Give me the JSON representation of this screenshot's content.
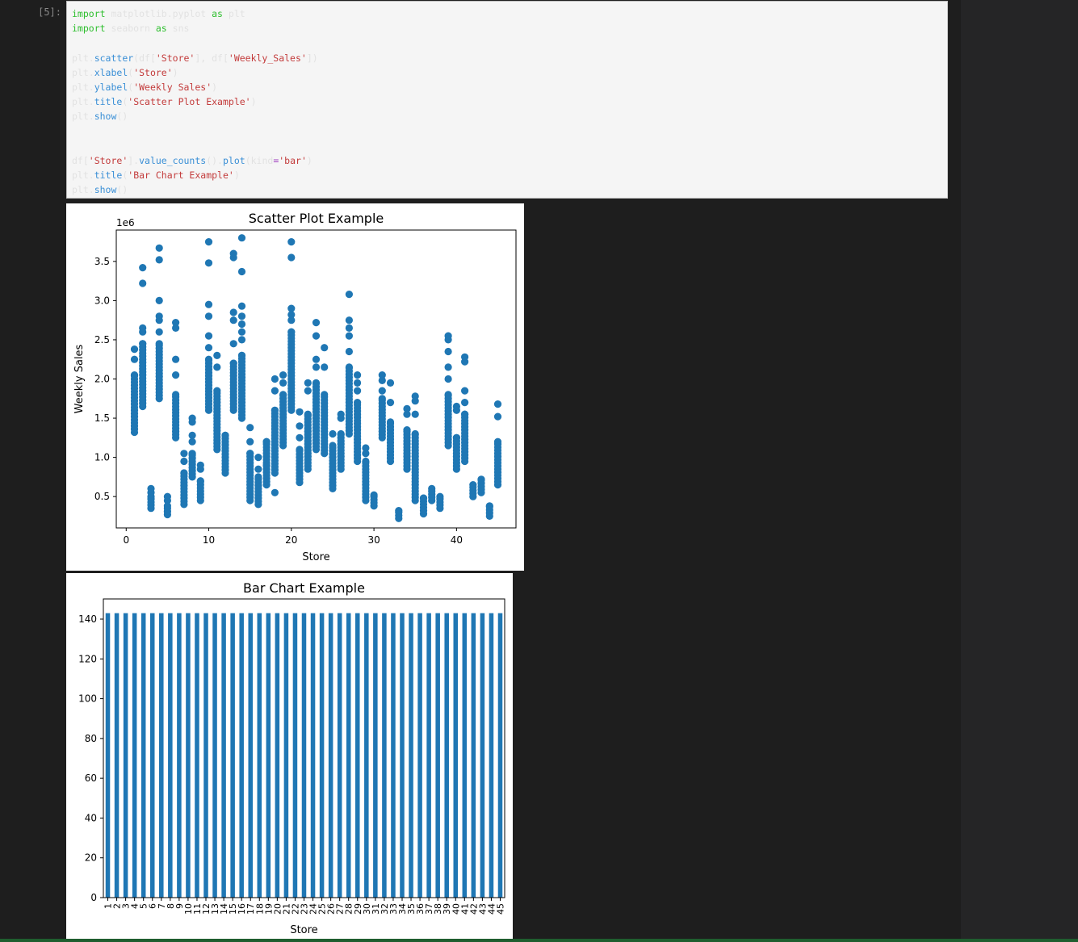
{
  "cell": {
    "prompt": "[5]:",
    "lines": [
      [
        {
          "t": "import",
          "c": "kw"
        },
        {
          "t": " matplotlib.pyplot ",
          "c": "id"
        },
        {
          "t": "as",
          "c": "kw"
        },
        {
          "t": " plt",
          "c": "id"
        }
      ],
      [
        {
          "t": "import",
          "c": "kw"
        },
        {
          "t": " seaborn ",
          "c": "id"
        },
        {
          "t": "as",
          "c": "kw"
        },
        {
          "t": " sns",
          "c": "id"
        }
      ],
      [],
      [
        {
          "t": "plt.",
          "c": "id"
        },
        {
          "t": "scatter",
          "c": "fn"
        },
        {
          "t": "(df[",
          "c": "id"
        },
        {
          "t": "'Store'",
          "c": "str"
        },
        {
          "t": "], df[",
          "c": "id"
        },
        {
          "t": "'Weekly_Sales'",
          "c": "str"
        },
        {
          "t": "])",
          "c": "id"
        }
      ],
      [
        {
          "t": "plt.",
          "c": "id"
        },
        {
          "t": "xlabel",
          "c": "fn"
        },
        {
          "t": "(",
          "c": "id"
        },
        {
          "t": "'Store'",
          "c": "str"
        },
        {
          "t": ")",
          "c": "id"
        }
      ],
      [
        {
          "t": "plt.",
          "c": "id"
        },
        {
          "t": "ylabel",
          "c": "fn"
        },
        {
          "t": "(",
          "c": "id"
        },
        {
          "t": "'Weekly Sales'",
          "c": "str"
        },
        {
          "t": ")",
          "c": "id"
        }
      ],
      [
        {
          "t": "plt.",
          "c": "id"
        },
        {
          "t": "title",
          "c": "fn"
        },
        {
          "t": "(",
          "c": "id"
        },
        {
          "t": "'Scatter Plot Example'",
          "c": "str"
        },
        {
          "t": ")",
          "c": "id"
        }
      ],
      [
        {
          "t": "plt.",
          "c": "id"
        },
        {
          "t": "show",
          "c": "fn"
        },
        {
          "t": "()",
          "c": "id"
        }
      ],
      [],
      [],
      [
        {
          "t": "df[",
          "c": "id"
        },
        {
          "t": "'Store'",
          "c": "str"
        },
        {
          "t": "].",
          "c": "id"
        },
        {
          "t": "value_counts",
          "c": "fn"
        },
        {
          "t": "().",
          "c": "id"
        },
        {
          "t": "plot",
          "c": "fn"
        },
        {
          "t": "(kind",
          "c": "id"
        },
        {
          "t": "=",
          "c": "op"
        },
        {
          "t": "'bar'",
          "c": "str"
        },
        {
          "t": ")",
          "c": "id"
        }
      ],
      [
        {
          "t": "plt.",
          "c": "id"
        },
        {
          "t": "title",
          "c": "fn"
        },
        {
          "t": "(",
          "c": "id"
        },
        {
          "t": "'Bar Chart Example'",
          "c": "str"
        },
        {
          "t": ")",
          "c": "id"
        }
      ],
      [
        {
          "t": "plt.",
          "c": "id"
        },
        {
          "t": "show",
          "c": "fn"
        },
        {
          "t": "()",
          "c": "id"
        }
      ]
    ]
  },
  "chart_data": [
    {
      "type": "scatter",
      "title": "Scatter Plot Example",
      "xlabel": "Store",
      "ylabel": "Weekly Sales",
      "offset_text": "1e6",
      "xlim": [
        -1.2,
        47.2
      ],
      "ylim": [
        0.1,
        3.9
      ],
      "xticks": [
        0,
        10,
        20,
        30,
        40
      ],
      "yticks": [
        0.5,
        1.0,
        1.5,
        2.0,
        2.5,
        3.0,
        3.5
      ],
      "ytick_labels": [
        "0.5",
        "1.0",
        "1.5",
        "2.0",
        "2.5",
        "3.0",
        "3.5"
      ],
      "marker_color": "#1f77b4",
      "units": "1e6",
      "stores": [
        {
          "store": 1,
          "min": 1.32,
          "max": 2.05,
          "outliers": [
            2.25,
            2.38
          ]
        },
        {
          "store": 2,
          "min": 1.65,
          "max": 2.45,
          "outliers": [
            2.6,
            2.65,
            3.22,
            3.42
          ]
        },
        {
          "store": 3,
          "min": 0.35,
          "max": 0.5,
          "outliers": [
            0.55,
            0.6
          ]
        },
        {
          "store": 4,
          "min": 1.75,
          "max": 2.45,
          "outliers": [
            2.6,
            2.75,
            2.8,
            3.0,
            3.52,
            3.67
          ]
        },
        {
          "store": 5,
          "min": 0.27,
          "max": 0.38,
          "outliers": [
            0.45,
            0.5
          ]
        },
        {
          "store": 6,
          "min": 1.25,
          "max": 1.8,
          "outliers": [
            2.05,
            2.25,
            2.65,
            2.72
          ]
        },
        {
          "store": 7,
          "min": 0.4,
          "max": 0.8,
          "outliers": [
            0.95,
            1.05
          ]
        },
        {
          "store": 8,
          "min": 0.75,
          "max": 1.05,
          "outliers": [
            1.2,
            1.28,
            1.45,
            1.5
          ]
        },
        {
          "store": 9,
          "min": 0.45,
          "max": 0.7,
          "outliers": [
            0.85,
            0.9
          ]
        },
        {
          "store": 10,
          "min": 1.6,
          "max": 2.25,
          "outliers": [
            2.4,
            2.55,
            2.8,
            2.95,
            3.48,
            3.75
          ]
        },
        {
          "store": 11,
          "min": 1.1,
          "max": 1.85,
          "outliers": [
            2.15,
            2.3
          ]
        },
        {
          "store": 12,
          "min": 0.8,
          "max": 1.28,
          "outliers": []
        },
        {
          "store": 13,
          "min": 1.6,
          "max": 2.2,
          "outliers": [
            2.45,
            2.75,
            2.85,
            3.55,
            3.6
          ]
        },
        {
          "store": 14,
          "min": 1.5,
          "max": 2.3,
          "outliers": [
            2.5,
            2.6,
            2.7,
            2.8,
            2.93,
            3.37,
            3.8
          ]
        },
        {
          "store": 15,
          "min": 0.45,
          "max": 1.05,
          "outliers": [
            1.2,
            1.38
          ]
        },
        {
          "store": 16,
          "min": 0.4,
          "max": 0.75,
          "outliers": [
            0.85,
            1.0
          ]
        },
        {
          "store": 17,
          "min": 0.65,
          "max": 1.2,
          "outliers": [
            0.9,
            1.2
          ]
        },
        {
          "store": 18,
          "min": 0.8,
          "max": 1.6,
          "outliers": [
            0.55,
            1.85,
            2.0
          ]
        },
        {
          "store": 19,
          "min": 1.15,
          "max": 1.8,
          "outliers": [
            1.95,
            2.05
          ]
        },
        {
          "store": 20,
          "min": 1.6,
          "max": 2.6,
          "outliers": [
            2.75,
            2.82,
            2.9,
            3.55,
            3.75
          ]
        },
        {
          "store": 21,
          "min": 0.68,
          "max": 1.1,
          "outliers": [
            1.25,
            1.4,
            1.58
          ]
        },
        {
          "store": 22,
          "min": 0.85,
          "max": 1.55,
          "outliers": [
            1.85,
            1.95
          ]
        },
        {
          "store": 23,
          "min": 1.1,
          "max": 1.95,
          "outliers": [
            2.15,
            2.25,
            2.55,
            2.72
          ]
        },
        {
          "store": 24,
          "min": 1.05,
          "max": 1.8,
          "outliers": [
            2.15,
            2.4
          ]
        },
        {
          "store": 25,
          "min": 0.6,
          "max": 1.15,
          "outliers": [
            1.3
          ]
        },
        {
          "store": 26,
          "min": 0.85,
          "max": 1.3,
          "outliers": [
            1.5,
            1.55
          ]
        },
        {
          "store": 27,
          "min": 1.3,
          "max": 2.15,
          "outliers": [
            2.35,
            2.55,
            2.65,
            2.75,
            3.08
          ]
        },
        {
          "store": 28,
          "min": 0.95,
          "max": 1.7,
          "outliers": [
            1.85,
            1.95,
            2.05
          ]
        },
        {
          "store": 29,
          "min": 0.45,
          "max": 0.95,
          "outliers": [
            1.05,
            1.12
          ]
        },
        {
          "store": 30,
          "min": 0.38,
          "max": 0.52,
          "outliers": []
        },
        {
          "store": 31,
          "min": 1.25,
          "max": 1.75,
          "outliers": [
            1.85,
            1.98,
            2.05
          ]
        },
        {
          "store": 32,
          "min": 0.95,
          "max": 1.45,
          "outliers": [
            1.7,
            1.95
          ]
        },
        {
          "store": 33,
          "min": 0.22,
          "max": 0.32,
          "outliers": []
        },
        {
          "store": 34,
          "min": 0.85,
          "max": 1.35,
          "outliers": [
            1.55,
            1.62
          ]
        },
        {
          "store": 35,
          "min": 0.45,
          "max": 1.3,
          "outliers": [
            1.55,
            1.72,
            1.78
          ]
        },
        {
          "store": 36,
          "min": 0.28,
          "max": 0.48,
          "outliers": []
        },
        {
          "store": 37,
          "min": 0.45,
          "max": 0.6,
          "outliers": []
        },
        {
          "store": 38,
          "min": 0.35,
          "max": 0.5,
          "outliers": []
        },
        {
          "store": 39,
          "min": 1.15,
          "max": 1.8,
          "outliers": [
            2.0,
            2.15,
            2.35,
            2.5,
            2.55
          ]
        },
        {
          "store": 40,
          "min": 0.85,
          "max": 1.25,
          "outliers": [
            1.6,
            1.65
          ]
        },
        {
          "store": 41,
          "min": 0.95,
          "max": 1.55,
          "outliers": [
            1.7,
            1.85,
            2.22,
            2.28
          ]
        },
        {
          "store": 42,
          "min": 0.5,
          "max": 0.65,
          "outliers": []
        },
        {
          "store": 43,
          "min": 0.55,
          "max": 0.72,
          "outliers": []
        },
        {
          "store": 44,
          "min": 0.25,
          "max": 0.38,
          "outliers": []
        },
        {
          "store": 45,
          "min": 0.65,
          "max": 1.2,
          "outliers": [
            1.52,
            1.68
          ]
        }
      ]
    },
    {
      "type": "bar",
      "title": "Bar Chart Example",
      "xlabel": "Store",
      "ylabel": "",
      "bar_color": "#1f77b4",
      "categories": [
        "1",
        "2",
        "3",
        "4",
        "5",
        "6",
        "7",
        "8",
        "9",
        "10",
        "11",
        "12",
        "13",
        "14",
        "15",
        "16",
        "17",
        "18",
        "19",
        "20",
        "21",
        "22",
        "23",
        "24",
        "25",
        "26",
        "27",
        "28",
        "29",
        "30",
        "31",
        "32",
        "33",
        "34",
        "35",
        "36",
        "37",
        "38",
        "39",
        "40",
        "41",
        "42",
        "43",
        "44",
        "45"
      ],
      "values": [
        143,
        143,
        143,
        143,
        143,
        143,
        143,
        143,
        143,
        143,
        143,
        143,
        143,
        143,
        143,
        143,
        143,
        143,
        143,
        143,
        143,
        143,
        143,
        143,
        143,
        143,
        143,
        143,
        143,
        143,
        143,
        143,
        143,
        143,
        143,
        143,
        143,
        143,
        143,
        143,
        143,
        143,
        143,
        143,
        143
      ],
      "ylim": [
        0,
        150.15
      ],
      "yticks": [
        0,
        20,
        40,
        60,
        80,
        100,
        120,
        140
      ]
    }
  ]
}
